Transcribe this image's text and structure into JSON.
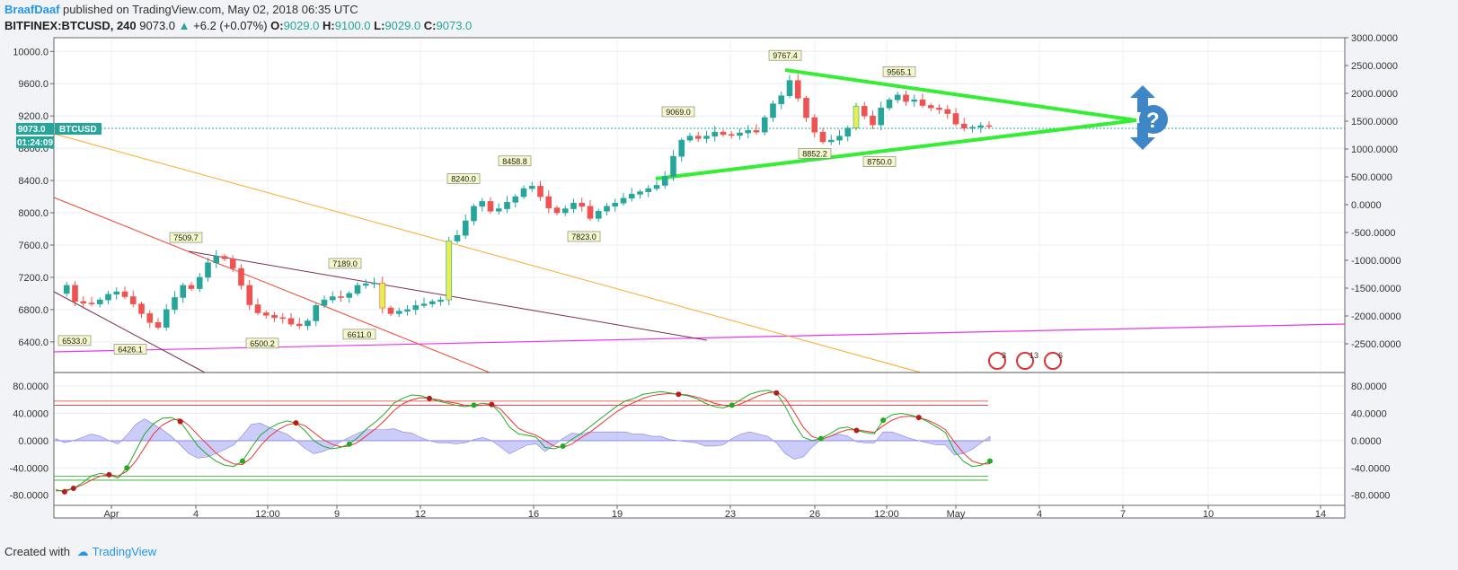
{
  "header": {
    "author": "BraafDaaf",
    "published_text": "published on TradingView.com, May 02, 2018 06:35 UTC",
    "symbol": "BITFINEX:BTCUSD, 240",
    "last": "9073.0",
    "change": "+6.2 (+0.07%)",
    "o_label": "O:",
    "o_value": "9029.0",
    "h_label": "H:",
    "h_value": "9100.0",
    "l_label": "L:",
    "l_value": "9029.0",
    "c_label": "C:",
    "c_value": "9073.0"
  },
  "price_tag": {
    "price": "9073.0",
    "symbol": "BTCUSD",
    "countdown": "01:24:09"
  },
  "footer": {
    "created_with": "Created with",
    "brand": "TradingView"
  },
  "event_badges": [
    "3",
    "13",
    "6"
  ],
  "colors": {
    "up": "#26a69a",
    "down": "#ef5350",
    "highlight": "#e6ee50",
    "triangle": "#33ee33",
    "magenta": "#ee33ee",
    "orange": "#ffa726",
    "red_line": "#f44336",
    "purple_line": "#7b2d4e",
    "macd_fast": "#22aa22",
    "macd_slow": "#ee3333",
    "histogram": "#8080ee",
    "arrow": "#3e86c6"
  },
  "chart_data": [
    {
      "type": "candlestick",
      "x_ticks": [
        "Apr",
        "4",
        "12:00",
        "9",
        "12",
        "16",
        "19",
        "23",
        "26",
        "12:00",
        "May",
        "4",
        "7",
        "10",
        "14"
      ],
      "y_ticks_left": [
        "6400.0",
        "6800.0",
        "7200.0",
        "7600.0",
        "8000.0",
        "8400.0",
        "8800.0",
        "9200.0",
        "9600.0",
        "10000.0"
      ],
      "y_ticks_right": [
        "-2500.0000",
        "-2000.0000",
        "-1500.0000",
        "-1000.0000",
        "-500.0000",
        "0.0000",
        "500.0000",
        "1000.0000",
        "1500.0000",
        "2000.0000",
        "2500.0000",
        "3000.0000"
      ],
      "ylim": [
        6020,
        10170
      ],
      "ohlc_path": [
        [
          0,
          7000
        ],
        [
          1,
          7100
        ],
        [
          2,
          6900
        ],
        [
          3,
          6880
        ],
        [
          4,
          6870
        ],
        [
          5,
          6920
        ],
        [
          6,
          6990
        ],
        [
          7,
          7020
        ],
        [
          8,
          6960
        ],
        [
          9,
          6870
        ],
        [
          10,
          6750
        ],
        [
          11,
          6640
        ],
        [
          12,
          6580
        ],
        [
          13,
          6800
        ],
        [
          14,
          6950
        ],
        [
          15,
          7100
        ],
        [
          16,
          7060
        ],
        [
          17,
          7200
        ],
        [
          18,
          7380
        ],
        [
          19,
          7460
        ],
        [
          20,
          7430
        ],
        [
          21,
          7310
        ],
        [
          22,
          7100
        ],
        [
          23,
          6860
        ],
        [
          24,
          6760
        ],
        [
          25,
          6730
        ],
        [
          26,
          6700
        ],
        [
          27,
          6690
        ],
        [
          28,
          6620
        ],
        [
          29,
          6600
        ],
        [
          30,
          6660
        ],
        [
          31,
          6850
        ],
        [
          32,
          6920
        ],
        [
          33,
          6960
        ],
        [
          34,
          6950
        ],
        [
          35,
          7000
        ],
        [
          36,
          7100
        ],
        [
          37,
          7120
        ],
        [
          38,
          7130
        ],
        [
          39,
          6820
        ],
        [
          40,
          6750
        ],
        [
          41,
          6780
        ],
        [
          42,
          6800
        ],
        [
          43,
          6850
        ],
        [
          44,
          6870
        ],
        [
          45,
          6900
        ],
        [
          46,
          6920
        ],
        [
          47,
          7650
        ],
        [
          48,
          7720
        ],
        [
          49,
          7900
        ],
        [
          50,
          8080
        ],
        [
          51,
          8140
        ],
        [
          52,
          8020
        ],
        [
          53,
          8050
        ],
        [
          54,
          8130
        ],
        [
          55,
          8200
        ],
        [
          56,
          8300
        ],
        [
          57,
          8330
        ],
        [
          58,
          8200
        ],
        [
          59,
          8060
        ],
        [
          60,
          8000
        ],
        [
          61,
          8050
        ],
        [
          62,
          8120
        ],
        [
          63,
          8080
        ],
        [
          64,
          7930
        ],
        [
          65,
          8020
        ],
        [
          66,
          8080
        ],
        [
          67,
          8120
        ],
        [
          68,
          8180
        ],
        [
          69,
          8230
        ],
        [
          70,
          8260
        ],
        [
          71,
          8300
        ],
        [
          72,
          8340
        ],
        [
          73,
          8450
        ],
        [
          74,
          8700
        ],
        [
          75,
          8900
        ],
        [
          76,
          8950
        ],
        [
          77,
          8920
        ],
        [
          78,
          8950
        ],
        [
          79,
          9000
        ],
        [
          80,
          8970
        ],
        [
          81,
          8960
        ],
        [
          82,
          8990
        ],
        [
          83,
          9020
        ],
        [
          84,
          9000
        ],
        [
          85,
          9180
        ],
        [
          86,
          9350
        ],
        [
          87,
          9450
        ],
        [
          88,
          9640
        ],
        [
          89,
          9420
        ],
        [
          90,
          9180
        ],
        [
          91,
          9000
        ],
        [
          92,
          8880
        ],
        [
          93,
          8900
        ],
        [
          94,
          8950
        ],
        [
          95,
          9050
        ],
        [
          96,
          9320
        ],
        [
          97,
          9200
        ],
        [
          98,
          9090
        ],
        [
          99,
          9300
        ],
        [
          100,
          9400
        ],
        [
          101,
          9460
        ],
        [
          102,
          9380
        ],
        [
          103,
          9400
        ],
        [
          104,
          9330
        ],
        [
          105,
          9300
        ],
        [
          106,
          9280
        ],
        [
          107,
          9230
        ],
        [
          108,
          9100
        ],
        [
          109,
          9050
        ],
        [
          110,
          9060
        ],
        [
          111,
          9080
        ],
        [
          112,
          9073
        ]
      ],
      "price_labels": [
        "6533.0",
        "6426.1",
        "7509.7",
        "6500.2",
        "7189.0",
        "6611.0",
        "8240.0",
        "8458.8",
        "7823.0",
        "9069.0",
        "9767.4",
        "8852.2",
        "9565.1",
        "8750.0"
      ],
      "trendlines": "symmetrical triangle drawn from the 9767.4 / 8852.2 swings, converging near May 7",
      "annotation": "blue double-headed arrow with question mark at triangle apex"
    },
    {
      "type": "macd",
      "y_ticks": [
        "-80.0000",
        "-40.0000",
        "0.0000",
        "40.0000",
        "80.0000"
      ],
      "ylim": [
        -95,
        100
      ],
      "fast_line": [
        -72,
        -75,
        -70,
        -62,
        -52,
        -48,
        -50,
        -55,
        -40,
        -15,
        10,
        25,
        33,
        34,
        28,
        10,
        -8,
        -20,
        -30,
        -36,
        -38,
        -30,
        -10,
        8,
        18,
        25,
        29,
        26,
        15,
        0,
        -8,
        -12,
        -10,
        -5,
        5,
        18,
        28,
        40,
        55,
        62,
        67,
        66,
        62,
        58,
        55,
        52,
        50,
        52,
        55,
        53,
        40,
        20,
        10,
        8,
        5,
        -10,
        -12,
        -8,
        2,
        10,
        20,
        30,
        40,
        50,
        58,
        62,
        68,
        70,
        72,
        70,
        68,
        66,
        62,
        55,
        50,
        48,
        52,
        60,
        68,
        72,
        74,
        70,
        50,
        25,
        5,
        0,
        3,
        10,
        18,
        20,
        15,
        12,
        10,
        30,
        38,
        40,
        38,
        34,
        28,
        20,
        12,
        -15,
        -30,
        -38,
        -36,
        -30
      ],
      "slow_line": [
        -74,
        -73,
        -70,
        -65,
        -58,
        -52,
        -50,
        -52,
        -45,
        -30,
        -10,
        10,
        23,
        30,
        32,
        22,
        8,
        -5,
        -18,
        -28,
        -34,
        -35,
        -25,
        -8,
        6,
        16,
        23,
        26,
        22,
        12,
        2,
        -5,
        -9,
        -8,
        -2,
        8,
        18,
        30,
        44,
        54,
        60,
        63,
        62,
        60,
        57,
        55,
        52,
        51,
        52,
        53,
        46,
        32,
        18,
        12,
        8,
        0,
        -8,
        -10,
        -5,
        4,
        12,
        22,
        32,
        42,
        50,
        56,
        62,
        66,
        68,
        69,
        68,
        67,
        64,
        60,
        55,
        52,
        50,
        54,
        60,
        66,
        70,
        72,
        62,
        42,
        20,
        6,
        2,
        6,
        12,
        16,
        16,
        14,
        12,
        22,
        30,
        35,
        36,
        34,
        30,
        24,
        16,
        -2,
        -18,
        -30,
        -34,
        -34
      ]
    }
  ]
}
